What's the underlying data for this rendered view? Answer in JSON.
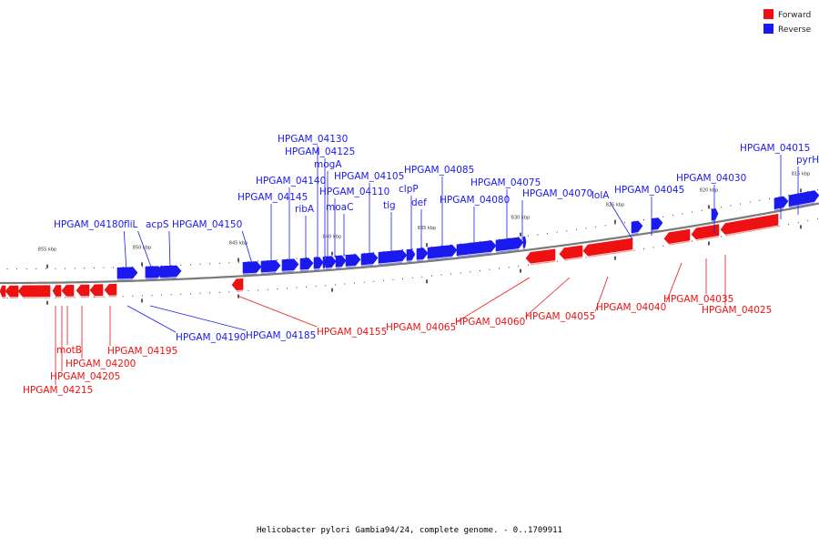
{
  "colors": {
    "forward": "#ee1111",
    "reverse": "#1a1aee",
    "backbone": "#7a7a7a"
  },
  "legend": [
    {
      "label": "Forward",
      "strand": "forward"
    },
    {
      "label": "Reverse",
      "strand": "reverse"
    }
  ],
  "caption": "Helicobacter pylori Gambia94/24, complete genome. - 0..1709911",
  "scale_labels": [
    "855 kbp",
    "850 kbp",
    "845 kbp",
    "840 kbp",
    "835 kbp",
    "830 kbp",
    "825 kbp",
    "820 kbp",
    "815 kbp"
  ],
  "genes": [
    {
      "name": "HPGAM_04215",
      "strand": "forward"
    },
    {
      "name": "HPGAM_04205",
      "strand": "forward"
    },
    {
      "name": "HPGAM_04200",
      "strand": "forward"
    },
    {
      "name": "motB",
      "strand": "forward"
    },
    {
      "name": "HPGAM_04195",
      "strand": "forward"
    },
    {
      "name": "HPGAM_04190",
      "strand": "reverse"
    },
    {
      "name": "HPGAM_04185",
      "strand": "reverse"
    },
    {
      "name": "HPGAM_04180",
      "strand": "reverse"
    },
    {
      "name": "fliL",
      "strand": "reverse"
    },
    {
      "name": "acpS",
      "strand": "reverse"
    },
    {
      "name": "HPGAM_04155",
      "strand": "forward"
    },
    {
      "name": "HPGAM_04150",
      "strand": "reverse"
    },
    {
      "name": "HPGAM_04145",
      "strand": "reverse"
    },
    {
      "name": "HPGAM_04140",
      "strand": "reverse"
    },
    {
      "name": "ribA",
      "strand": "reverse"
    },
    {
      "name": "HPGAM_04130",
      "strand": "reverse"
    },
    {
      "name": "HPGAM_04125",
      "strand": "reverse"
    },
    {
      "name": "mogA",
      "strand": "reverse"
    },
    {
      "name": "HPGAM_04110",
      "strand": "reverse"
    },
    {
      "name": "moaC",
      "strand": "reverse"
    },
    {
      "name": "HPGAM_04105",
      "strand": "reverse"
    },
    {
      "name": "tig",
      "strand": "reverse"
    },
    {
      "name": "clpP",
      "strand": "reverse"
    },
    {
      "name": "def",
      "strand": "reverse"
    },
    {
      "name": "HPGAM_04085",
      "strand": "reverse"
    },
    {
      "name": "HPGAM_04080",
      "strand": "reverse"
    },
    {
      "name": "HPGAM_04075",
      "strand": "reverse"
    },
    {
      "name": "HPGAM_04070",
      "strand": "reverse"
    },
    {
      "name": "HPGAM_04065",
      "strand": "forward"
    },
    {
      "name": "HPGAM_04060",
      "strand": "forward"
    },
    {
      "name": "HPGAM_04055",
      "strand": "forward"
    },
    {
      "name": "lolA",
      "strand": "reverse"
    },
    {
      "name": "HPGAM_04045",
      "strand": "reverse"
    },
    {
      "name": "HPGAM_04040",
      "strand": "forward"
    },
    {
      "name": "HPGAM_04035",
      "strand": "forward"
    },
    {
      "name": "HPGAM_04030",
      "strand": "reverse"
    },
    {
      "name": "HPGAM_04025",
      "strand": "forward"
    },
    {
      "name": "HPGAM_04015",
      "strand": "reverse"
    },
    {
      "name": "pyrH",
      "strand": "reverse"
    }
  ]
}
